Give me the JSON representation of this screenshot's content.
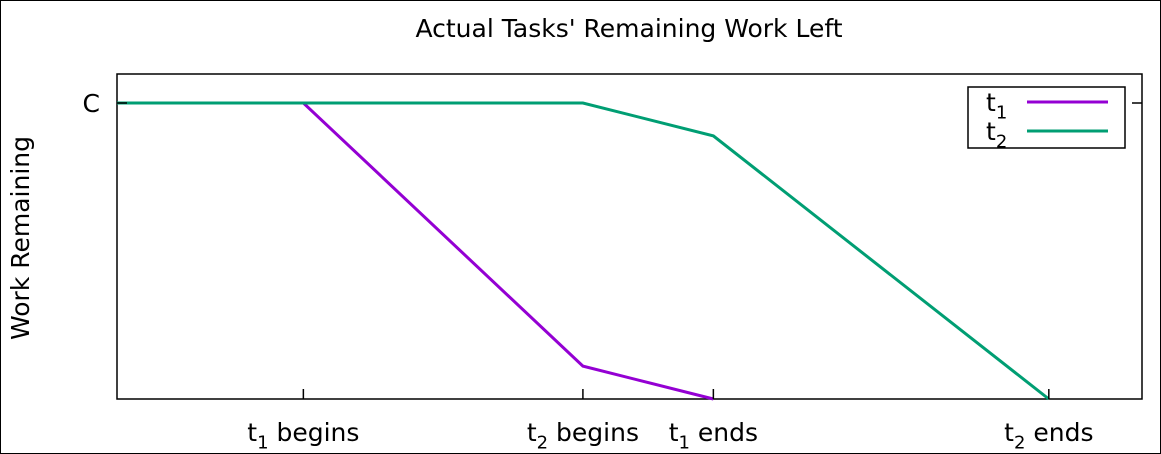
{
  "chart_data": {
    "type": "line",
    "title": "Actual Tasks' Remaining Work Left",
    "xlabel": "",
    "ylabel": "Work Remaining",
    "xlim": [
      0,
      11
    ],
    "ylim": [
      0,
      1
    ],
    "grid": false,
    "legend_position": "top-right",
    "x_ticks": [
      {
        "x": 2,
        "main": "t",
        "sub": "1",
        "rest": " begins"
      },
      {
        "x": 5,
        "main": "t",
        "sub": "2",
        "rest": " begins"
      },
      {
        "x": 6.4,
        "main": "t",
        "sub": "1",
        "rest": " ends"
      },
      {
        "x": 10,
        "main": "t",
        "sub": "2",
        "rest": " ends"
      }
    ],
    "y_ticks": [
      {
        "y": 0.9,
        "label": "C"
      }
    ],
    "series": [
      {
        "key": "t1",
        "main": "t",
        "sub": "1",
        "color": "#9400d3",
        "points": [
          [
            0,
            0.9
          ],
          [
            2,
            0.9
          ],
          [
            5,
            0.1
          ],
          [
            6.4,
            0
          ]
        ]
      },
      {
        "key": "t2",
        "main": "t",
        "sub": "2",
        "color": "#009e73",
        "points": [
          [
            0,
            0.9
          ],
          [
            5,
            0.9
          ],
          [
            6.4,
            0.8
          ],
          [
            10,
            0
          ]
        ]
      }
    ]
  }
}
